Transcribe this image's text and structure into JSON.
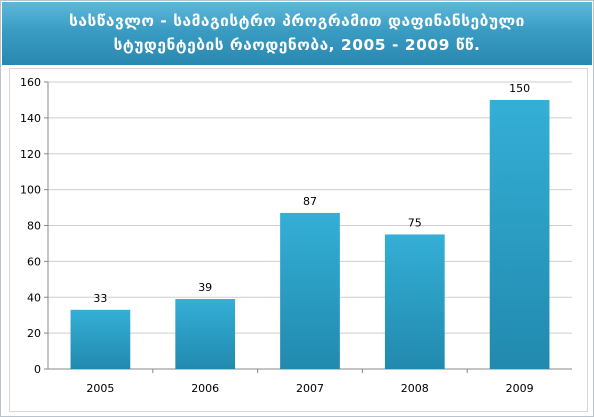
{
  "chart_data": {
    "type": "bar",
    "title_line1": "სასწავლო - სამაგისტრო პროგრამით დაფინანსებული",
    "title_line2": "სტუდენტების რაოდენობა, 2005 - 2009 წწ.",
    "categories": [
      "2005",
      "2006",
      "2007",
      "2008",
      "2009"
    ],
    "values": [
      33,
      39,
      87,
      75,
      150
    ],
    "data_labels": [
      "33",
      "39",
      "87",
      "75",
      "150"
    ],
    "ylim": [
      0,
      160
    ],
    "yticks": [
      0,
      20,
      40,
      60,
      80,
      100,
      120,
      140,
      160
    ],
    "xlabel": "",
    "ylabel": "",
    "grid": true,
    "legend": "none",
    "bar_color": "#34afd6",
    "bar_color_dark": "#2289ae",
    "header_color": "#3a9cc3"
  }
}
